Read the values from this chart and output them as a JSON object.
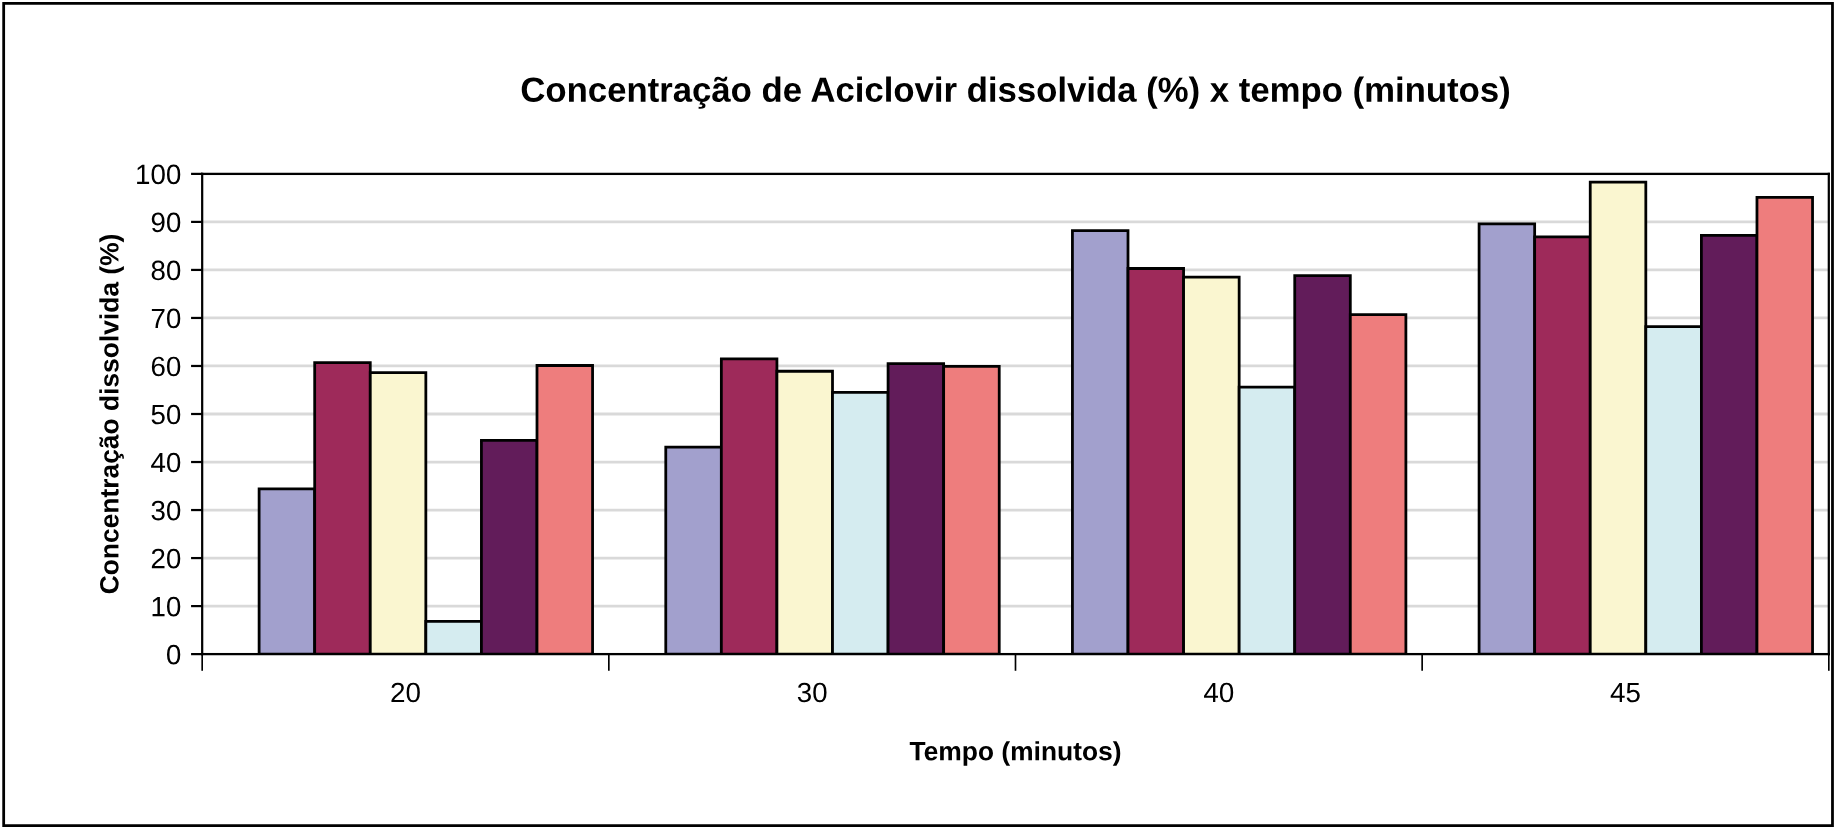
{
  "chart_data": {
    "type": "bar",
    "title": "Concentração de Aciclovir dissolvida (%) x tempo (minutos)",
    "xlabel": "Tempo (minutos)",
    "ylabel": "Concentração dissolvida (%)",
    "categories": [
      "20",
      "30",
      "40",
      "45"
    ],
    "series": [
      {
        "color": "#a2a0cd",
        "values": [
          34.4,
          43.1,
          88.2,
          89.6
        ]
      },
      {
        "color": "#9e2a5a",
        "values": [
          60.7,
          61.5,
          80.3,
          86.9
        ]
      },
      {
        "color": "#faf6d0",
        "values": [
          58.6,
          58.9,
          78.5,
          98.3
        ]
      },
      {
        "color": "#d5ecf0",
        "values": [
          6.8,
          54.5,
          55.6,
          68.2
        ]
      },
      {
        "color": "#621c5a",
        "values": [
          44.5,
          60.5,
          78.8,
          87.2
        ]
      },
      {
        "color": "#ee7d7d",
        "values": [
          60.1,
          59.9,
          70.7,
          95.1
        ]
      }
    ],
    "ylim": [
      0,
      100
    ],
    "yticks": [
      0,
      10,
      20,
      30,
      40,
      50,
      60,
      70,
      80,
      90,
      100
    ],
    "grid": "y",
    "legend": false
  }
}
